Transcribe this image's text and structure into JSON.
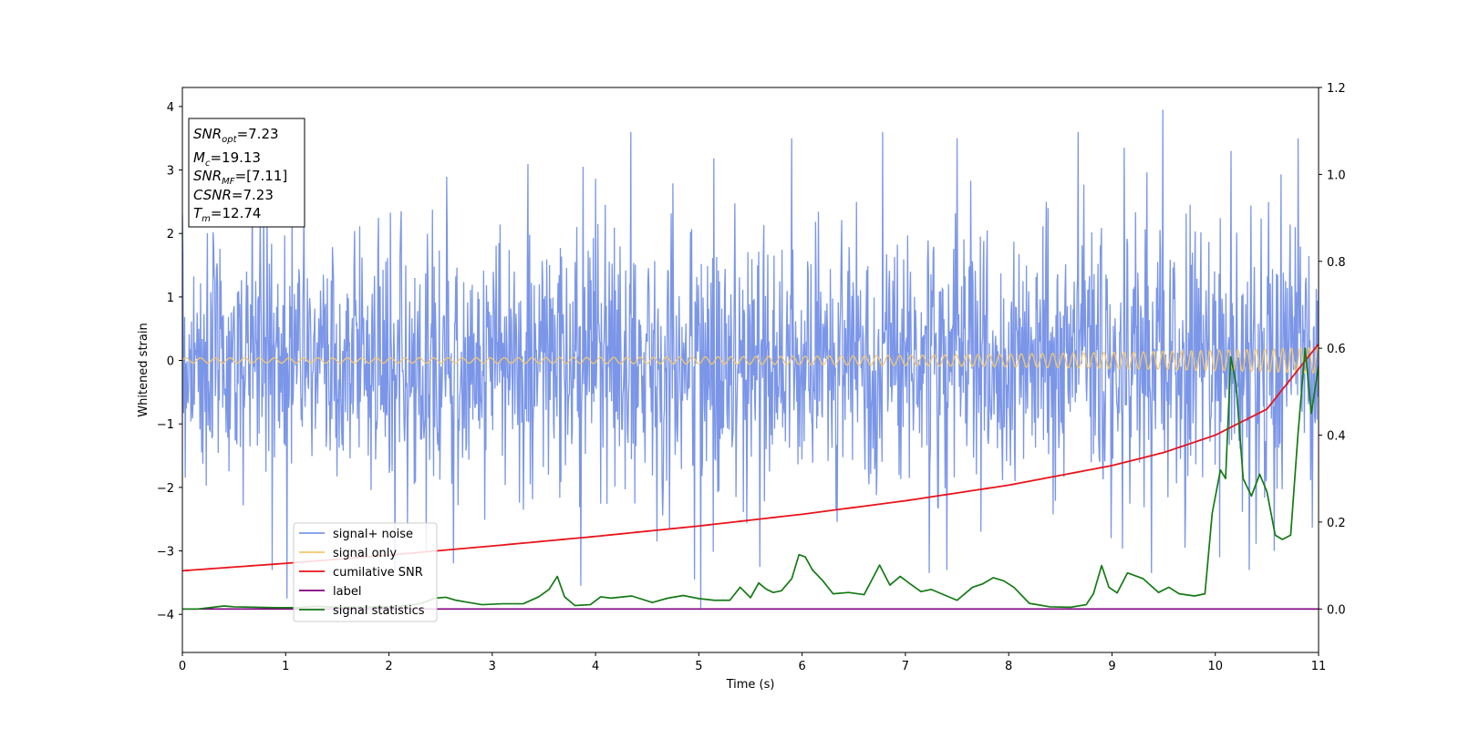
{
  "chart_data": {
    "type": "line",
    "xlabel": "Time (s)",
    "ylabel": "Whitened strain",
    "xlim": [
      0,
      11
    ],
    "ylim_left": [
      -4.6,
      4.3
    ],
    "ylim_right": [
      -0.1,
      1.2
    ],
    "x_ticks": [
      0,
      1,
      2,
      3,
      4,
      5,
      6,
      7,
      8,
      9,
      10,
      11
    ],
    "y_ticks_left": [
      {
        "value": 4,
        "label": "4"
      },
      {
        "value": 3,
        "label": "3"
      },
      {
        "value": 2,
        "label": "2"
      },
      {
        "value": 1,
        "label": "1"
      },
      {
        "value": 0,
        "label": "0"
      },
      {
        "value": -1,
        "label": "−1"
      },
      {
        "value": -2,
        "label": "−2"
      },
      {
        "value": -3,
        "label": "−3"
      },
      {
        "value": -4,
        "label": "−4"
      }
    ],
    "y_ticks_right": [
      {
        "value": 1.2,
        "label": "1.2"
      },
      {
        "value": 1.0,
        "label": "1.0"
      },
      {
        "value": 0.8,
        "label": "0.8"
      },
      {
        "value": 0.6,
        "label": "0.6"
      },
      {
        "value": 0.4,
        "label": "0.4"
      },
      {
        "value": 0.2,
        "label": "0.2"
      },
      {
        "value": 0.0,
        "label": "0.0"
      }
    ],
    "annotation": [
      {
        "main": "SNR",
        "sub": "opt",
        "rest": "=7.23"
      },
      {
        "main": "M",
        "sub": "c",
        "rest": "=19.13"
      },
      {
        "main": "SNR",
        "sub": "MF",
        "rest": "=[7.11]"
      },
      {
        "main": "CSNR",
        "sub": "",
        "rest": "=7.23"
      },
      {
        "main": "T",
        "sub": "m",
        "rest": "=12.74"
      }
    ],
    "series": [
      {
        "name": "signal+ noise",
        "axis": "left",
        "color": "#7b96e8",
        "description": "whitened noise samples, roughly gaussian, sigma≈1, 2000 samples over 0–11 s",
        "noise_sigma": 1.0,
        "spikes": [
          {
            "x": 0.0,
            "y": 2.3
          },
          {
            "x": 0.87,
            "y": -3.3
          },
          {
            "x": 1.01,
            "y": -3.75
          },
          {
            "x": 2.06,
            "y": -3.3
          },
          {
            "x": 2.36,
            "y": -3.0
          },
          {
            "x": 3.86,
            "y": -3.55
          },
          {
            "x": 4.34,
            "y": 3.6
          },
          {
            "x": 4.96,
            "y": -3.45
          },
          {
            "x": 5.02,
            "y": -3.9
          },
          {
            "x": 5.59,
            "y": -3.25
          },
          {
            "x": 5.9,
            "y": 3.5
          },
          {
            "x": 6.78,
            "y": 3.6
          },
          {
            "x": 7.23,
            "y": -3.35
          },
          {
            "x": 7.5,
            "y": 3.5
          },
          {
            "x": 7.4,
            "y": -3.3
          },
          {
            "x": 8.67,
            "y": 3.6
          },
          {
            "x": 9.12,
            "y": 3.35
          },
          {
            "x": 9.38,
            "y": -3.35
          },
          {
            "x": 9.49,
            "y": 3.95
          },
          {
            "x": 10.15,
            "y": 3.3
          },
          {
            "x": 10.04,
            "y": -3.1
          },
          {
            "x": 10.33,
            "y": -3.3
          },
          {
            "x": 10.8,
            "y": 3.5
          },
          {
            "x": 10.57,
            "y": -3.0
          }
        ]
      },
      {
        "name": "signal only",
        "axis": "left",
        "color": "#f5c76b",
        "description": "chirp oscillation with growing amplitude",
        "amplitude_start": 0.04,
        "amplitude_end": 0.2,
        "cycles_per_second_start": 7,
        "cycles_per_second_end": 12
      },
      {
        "name": "cumilative SNR",
        "axis": "right",
        "color": "#e8141b",
        "x": [
          0,
          1,
          2,
          3,
          4,
          5,
          6,
          7,
          8,
          9,
          9.5,
          10,
          10.5,
          11
        ],
        "y": [
          0.088,
          0.105,
          0.124,
          0.145,
          0.167,
          0.191,
          0.218,
          0.249,
          0.285,
          0.33,
          0.36,
          0.4,
          0.46,
          0.61
        ]
      },
      {
        "name": "label",
        "axis": "right",
        "color": "#800080",
        "x": [
          0,
          11
        ],
        "y": [
          0.0,
          0.0
        ]
      },
      {
        "name": "signal statistics",
        "axis": "right",
        "color": "#157a15",
        "x": [
          0,
          0.15,
          0.3,
          0.4,
          0.5,
          0.7,
          0.9,
          1.1,
          1.3,
          1.5,
          1.7,
          1.9,
          2.1,
          2.3,
          2.45,
          2.55,
          2.65,
          2.75,
          2.9,
          3.1,
          3.3,
          3.45,
          3.55,
          3.63,
          3.7,
          3.8,
          3.95,
          4.05,
          4.15,
          4.35,
          4.55,
          4.7,
          4.85,
          5.0,
          5.15,
          5.3,
          5.4,
          5.5,
          5.58,
          5.65,
          5.72,
          5.8,
          5.9,
          5.97,
          6.03,
          6.1,
          6.2,
          6.3,
          6.45,
          6.6,
          6.75,
          6.85,
          6.95,
          7.05,
          7.15,
          7.25,
          7.35,
          7.5,
          7.65,
          7.75,
          7.85,
          7.95,
          8.05,
          8.2,
          8.4,
          8.6,
          8.75,
          8.82,
          8.9,
          8.97,
          9.05,
          9.15,
          9.3,
          9.45,
          9.55,
          9.65,
          9.8,
          9.9,
          9.97,
          10.05,
          10.1,
          10.15,
          10.2,
          10.27,
          10.35,
          10.43,
          10.5,
          10.58,
          10.65,
          10.73,
          10.8,
          10.87,
          10.93,
          11.0
        ],
        "y": [
          0.0,
          0.0,
          0.004,
          0.007,
          0.005,
          0.004,
          0.003,
          0.003,
          0.006,
          0.004,
          0.004,
          0.005,
          0.006,
          0.012,
          0.025,
          0.027,
          0.02,
          0.016,
          0.01,
          0.012,
          0.012,
          0.028,
          0.045,
          0.075,
          0.028,
          0.008,
          0.01,
          0.028,
          0.025,
          0.03,
          0.015,
          0.025,
          0.031,
          0.024,
          0.02,
          0.02,
          0.05,
          0.026,
          0.06,
          0.046,
          0.038,
          0.042,
          0.07,
          0.125,
          0.12,
          0.09,
          0.065,
          0.035,
          0.038,
          0.033,
          0.101,
          0.055,
          0.075,
          0.057,
          0.04,
          0.045,
          0.035,
          0.02,
          0.05,
          0.058,
          0.072,
          0.065,
          0.05,
          0.013,
          0.005,
          0.004,
          0.01,
          0.035,
          0.1,
          0.05,
          0.037,
          0.083,
          0.07,
          0.038,
          0.05,
          0.035,
          0.03,
          0.035,
          0.22,
          0.32,
          0.3,
          0.58,
          0.52,
          0.3,
          0.26,
          0.31,
          0.27,
          0.17,
          0.16,
          0.17,
          0.4,
          0.6,
          0.45,
          0.56
        ]
      }
    ],
    "legend": {
      "placement": "lower-left",
      "entries": [
        "signal+ noise",
        "signal only",
        "cumilative SNR",
        "label",
        "signal statistics"
      ]
    }
  }
}
